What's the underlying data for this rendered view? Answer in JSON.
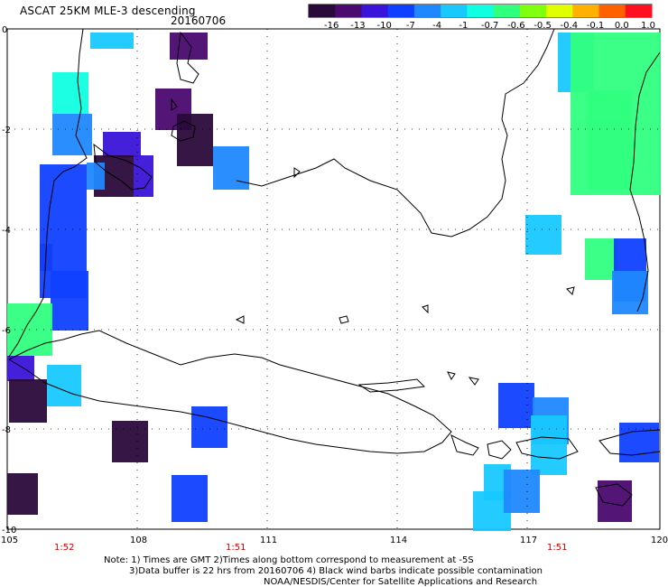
{
  "header": {
    "title": "ASCAT 25KM MLE-3 descending",
    "date": "20160706"
  },
  "colorbar": {
    "labels": [
      "-16",
      "-13",
      "-10",
      "-7",
      "-4",
      "-1",
      "-0.7",
      "-0.6",
      "-0.5",
      "-0.4",
      "-0.1",
      "0.0",
      "1.0"
    ],
    "colors": [
      "#2a0a3a",
      "#4a0a70",
      "#3a14d8",
      "#1040ff",
      "#2088ff",
      "#18c8ff",
      "#10ffe0",
      "#30ff80",
      "#80ff10",
      "#e0ff00",
      "#ffb000",
      "#ff6000",
      "#ff1020"
    ]
  },
  "map": {
    "lon_labels": [
      "105",
      "108",
      "111",
      "114",
      "117",
      "120"
    ],
    "lat_labels": [
      "0",
      "-2",
      "-4",
      "-6",
      "-8",
      "-10"
    ],
    "time_labels": [
      "1:52",
      "1:51",
      "1:51"
    ],
    "time_color": "#cc0000"
  },
  "notes": {
    "line1": "Note: 1) Times are GMT 2)Times along bottom correspond to measurement at -5S",
    "line2": "3)Data buffer is 22 hrs from 20160706 4) Black wind barbs indicate possible contamination",
    "line3": "NOAA/NESDIS/Center for Satellite Applications and Research"
  }
}
